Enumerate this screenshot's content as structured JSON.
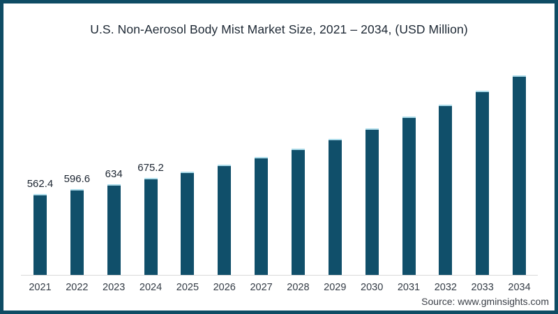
{
  "chart_data": {
    "type": "bar",
    "title": "U.S. Non-Aerosol Body Mist Market Size, 2021 – 2034, (USD Million)",
    "categories": [
      "2021",
      "2022",
      "2023",
      "2024",
      "2025",
      "2026",
      "2027",
      "2028",
      "2029",
      "2030",
      "2031",
      "2032",
      "2033",
      "2034"
    ],
    "values": [
      562.4,
      596.6,
      634,
      675.2,
      720,
      768,
      824,
      881,
      950,
      1020,
      1104,
      1186,
      1283,
      1388
    ],
    "value_labels": [
      "562.4",
      "596.6",
      "634",
      "675.2",
      "",
      "",
      "",
      "",
      "",
      "",
      "",
      "",
      "",
      ""
    ],
    "xlabel": "",
    "ylabel": "",
    "ylim": [
      0,
      1450
    ],
    "grid": false,
    "legend": false,
    "bar_color": "#104f6a",
    "bar_top_edge_color": "#aeddeb",
    "axis_line_color": "#d9d9d9"
  },
  "footer": {
    "source": "Source: www.gminsights.com"
  },
  "colors": {
    "frame_border": "#0f4c64",
    "background": "#ffffff",
    "title_text": "#1c2733",
    "axis_text": "#333b45"
  }
}
